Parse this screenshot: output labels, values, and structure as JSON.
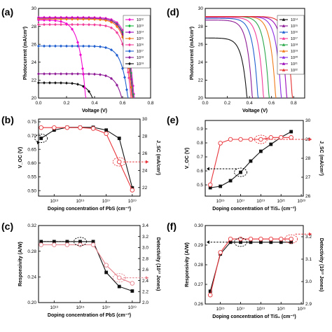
{
  "colors": {
    "black": "#111111",
    "red": "#e8343a",
    "pink": "#e57f8a",
    "c1e12": "#f10ad0",
    "c1e13": "#12b83a",
    "c1e14": "#9a0ab8",
    "c1e15": "#f07a18",
    "c1e16": "#f23c9a",
    "c1e17": "#1f5fd0",
    "c1e18": "#8e1a96",
    "c1e19": "#111111",
    "c1e20": "#2aa84a",
    "c1e21": "#8a2be2",
    "c1e22": "#e53030"
  },
  "chart_data": [
    {
      "panel": "(a)",
      "type": "line",
      "xlabel": "Voltage (V)",
      "ylabel": "Photocurrent (mA/cm²)",
      "xlim": [
        0.0,
        0.8
      ],
      "ylim": [
        20,
        30
      ],
      "xticks": [
        "0.0",
        "0.2",
        "0.4",
        "0.6",
        "0.8"
      ],
      "yticks": [
        "20",
        "22",
        "24",
        "26",
        "28",
        "30"
      ],
      "legend_position": "right",
      "series": [
        {
          "name": "10¹²",
          "jsc": 29.0,
          "voc": 0.735,
          "color_key": "c1e12",
          "marker": "diamond"
        },
        {
          "name": "10¹³",
          "jsc": 28.9,
          "voc": 0.73,
          "color_key": "c1e13",
          "marker": "diamond"
        },
        {
          "name": "10¹⁴",
          "jsc": 28.9,
          "voc": 0.725,
          "color_key": "c1e14",
          "marker": "diamond"
        },
        {
          "name": "10¹⁵",
          "jsc": 28.8,
          "voc": 0.72,
          "color_key": "c1e15",
          "marker": "diamond"
        },
        {
          "name": "10¹⁶",
          "jsc": 28.2,
          "voc": 0.715,
          "color_key": "c1e16",
          "marker": "diamond"
        },
        {
          "name": "10¹⁷",
          "jsc": 25.8,
          "voc": 0.705,
          "color_key": "c1e17",
          "marker": "diamond"
        },
        {
          "name": "10¹⁸",
          "jsc": 22.7,
          "voc": 0.69,
          "color_key": "c1e18",
          "marker": "diamond"
        },
        {
          "name": "10¹⁹",
          "jsc": 21.7,
          "voc": 0.5,
          "color_key": "c1e19",
          "marker": "diamond"
        }
      ],
      "extra_curve": {
        "jsc": 28.7,
        "voc": 0.39,
        "color_key": "c1e12"
      }
    },
    {
      "panel": "(d)",
      "type": "line",
      "xlabel": "Voltage (V)",
      "ylabel": "Photocurrent (mA/cm²)",
      "xlim": [
        0.0,
        0.9
      ],
      "ylim": [
        20,
        30
      ],
      "xticks": [
        "0.0",
        "0.2",
        "0.4",
        "0.6",
        "0.8"
      ],
      "yticks": [
        "20",
        "22",
        "24",
        "26",
        "28",
        "30"
      ],
      "legend_position": "right",
      "series": [
        {
          "name": "10¹⁴",
          "jsc": 26.7,
          "voc": 0.44,
          "color_key": "c1e19"
        },
        {
          "name": "10¹⁵",
          "jsc": 28.7,
          "voc": 0.48,
          "color_key": "c1e18"
        },
        {
          "name": "10¹⁶",
          "jsc": 28.9,
          "voc": 0.53,
          "color_key": "c1e17"
        },
        {
          "name": "10¹⁷",
          "jsc": 29.0,
          "voc": 0.58,
          "color_key": "c1e16"
        },
        {
          "name": "10¹⁸",
          "jsc": 29.1,
          "voc": 0.63,
          "color_key": "c1e20"
        },
        {
          "name": "10¹⁹",
          "jsc": 29.1,
          "voc": 0.69,
          "color_key": "c1e15"
        },
        {
          "name": "10²⁰",
          "jsc": 29.1,
          "voc": 0.74,
          "color_key": "c1e21"
        },
        {
          "name": "10²¹",
          "jsc": 29.1,
          "voc": 0.79,
          "color_key": "c1e14"
        },
        {
          "name": "10²²",
          "jsc": 29.1,
          "voc": 0.84,
          "color_key": "c1e22"
        }
      ]
    },
    {
      "panel": "(b)",
      "type": "line",
      "xlabel": "Doping concentration of PbS (cm⁻³)",
      "ylabel": "V_OC (V)",
      "ylabel2": "J_SC (mA/cm²)",
      "xlim_log10": [
        11.8,
        19.6
      ],
      "ylim": [
        0.48,
        0.76
      ],
      "ylim2": [
        21,
        30
      ],
      "xticks": [
        "10¹³",
        "10¹⁵",
        "10¹⁷",
        "10¹⁹"
      ],
      "yticks": [
        "0.50",
        "0.55",
        "0.60",
        "0.65",
        "0.70",
        "0.75"
      ],
      "yticks2": [
        "22",
        "24",
        "26",
        "28",
        "30"
      ],
      "series": [
        {
          "axis": "left",
          "color_key": "black",
          "marker": "square",
          "x_log10": [
            12,
            13,
            14,
            15,
            16,
            17,
            18,
            19
          ],
          "values": [
            0.69,
            0.72,
            0.73,
            0.73,
            0.73,
            0.72,
            0.69,
            0.51
          ]
        },
        {
          "axis": "right",
          "color_key": "red",
          "marker": "circle-open",
          "x_log10": [
            12,
            13,
            14,
            15,
            16,
            17,
            18,
            19
          ],
          "values": [
            29.0,
            29.0,
            29.0,
            29.0,
            28.9,
            28.3,
            25.0,
            21.7
          ]
        }
      ]
    },
    {
      "panel": "(e)",
      "type": "line",
      "xlabel": "Doping concentration of TiS₂ (cm⁻³)",
      "ylabel": "V_OC (V)",
      "ylabel2": "J_SC (mA/cm²)",
      "xlim_log10": [
        13.5,
        23.2
      ],
      "ylim": [
        0.42,
        0.96
      ],
      "ylim2": [
        26,
        30
      ],
      "xticks": [
        "10¹⁵",
        "10¹⁷",
        "10¹⁹",
        "10²¹",
        "10²³"
      ],
      "yticks": [
        "0.5",
        "0.6",
        "0.7",
        "0.8",
        "0.9"
      ],
      "yticks2": [
        "26",
        "27",
        "28",
        "29",
        "30"
      ],
      "series": [
        {
          "axis": "left",
          "color_key": "black",
          "marker": "square",
          "x_log10": [
            14,
            15,
            16,
            17,
            18,
            19,
            20,
            21,
            22
          ],
          "values": [
            0.48,
            0.49,
            0.53,
            0.59,
            0.67,
            0.74,
            0.79,
            0.84,
            0.88
          ]
        },
        {
          "axis": "right",
          "color_key": "red",
          "marker": "circle-open",
          "x_log10": [
            14,
            15,
            16,
            17,
            18,
            19,
            20,
            21,
            22
          ],
          "values": [
            26.6,
            28.8,
            29.0,
            29.0,
            29.0,
            29.0,
            29.1,
            29.1,
            29.1
          ]
        }
      ]
    },
    {
      "panel": "(c)",
      "type": "line",
      "xlabel": "Doping concentration of PbS (cm⁻³)",
      "ylabel": "Responsivity (A/W)",
      "ylabel2": "Detectivity (10¹³ Jones)",
      "xlim_log10": [
        11.8,
        19.6
      ],
      "ylim": [
        0.2,
        0.32
      ],
      "ylim2": [
        2.0,
        3.4
      ],
      "xticks": [
        "10¹³",
        "10¹⁵",
        "10¹⁷",
        "10¹⁹"
      ],
      "yticks": [
        "0.20",
        "0.24",
        "0.28",
        "0.32"
      ],
      "yticks2": [
        "2.0",
        "2.2",
        "2.4",
        "2.6",
        "2.8",
        "3.0",
        "3.2",
        "3.4"
      ],
      "series": [
        {
          "axis": "left",
          "color_key": "black",
          "marker": "square",
          "x_log10": [
            12,
            13,
            14,
            15,
            16,
            17,
            18,
            19
          ],
          "values": [
            0.295,
            0.295,
            0.295,
            0.295,
            0.295,
            0.247,
            0.225,
            0.218
          ]
        },
        {
          "axis": "right",
          "color_key": "pink",
          "marker": "circle-open",
          "x_log10": [
            12,
            13,
            14,
            15,
            16,
            17,
            18,
            19
          ],
          "values": [
            3.05,
            3.05,
            3.05,
            3.05,
            3.05,
            2.68,
            2.45,
            2.35
          ]
        }
      ]
    },
    {
      "panel": "(f)",
      "type": "line",
      "xlabel": "Doping concentration of TiS₂ (cm⁻³)",
      "ylabel": "Responsivity (A/W)",
      "ylabel2": "Detectivity (10¹³ Jones)",
      "xlim_log10": [
        13.5,
        23.2
      ],
      "ylim": [
        0.26,
        0.3
      ],
      "ylim2": [
        2.9,
        3.25
      ],
      "xticks": [
        "10¹⁵",
        "10¹⁷",
        "10¹⁹",
        "10²¹",
        "10²³"
      ],
      "yticks": [
        "0.26",
        "0.27",
        "0.28",
        "0.29",
        "0.30"
      ],
      "yticks2": [
        "2.9",
        "3.0",
        "3.1",
        "3.2"
      ],
      "series": [
        {
          "axis": "left",
          "color_key": "black",
          "marker": "square",
          "x_log10": [
            14,
            15,
            16,
            17,
            18,
            19,
            20,
            21,
            22
          ],
          "values": [
            0.2665,
            0.2855,
            0.2915,
            0.2915,
            0.2915,
            0.2915,
            0.2915,
            0.2915,
            0.2915
          ]
        },
        {
          "axis": "right",
          "color_key": "red",
          "marker": "circle-open",
          "x_log10": [
            14,
            15,
            16,
            17,
            18,
            19,
            20,
            21,
            22
          ],
          "values": [
            2.94,
            3.13,
            3.19,
            3.19,
            3.19,
            3.19,
            3.19,
            3.19,
            3.19
          ]
        }
      ]
    }
  ]
}
